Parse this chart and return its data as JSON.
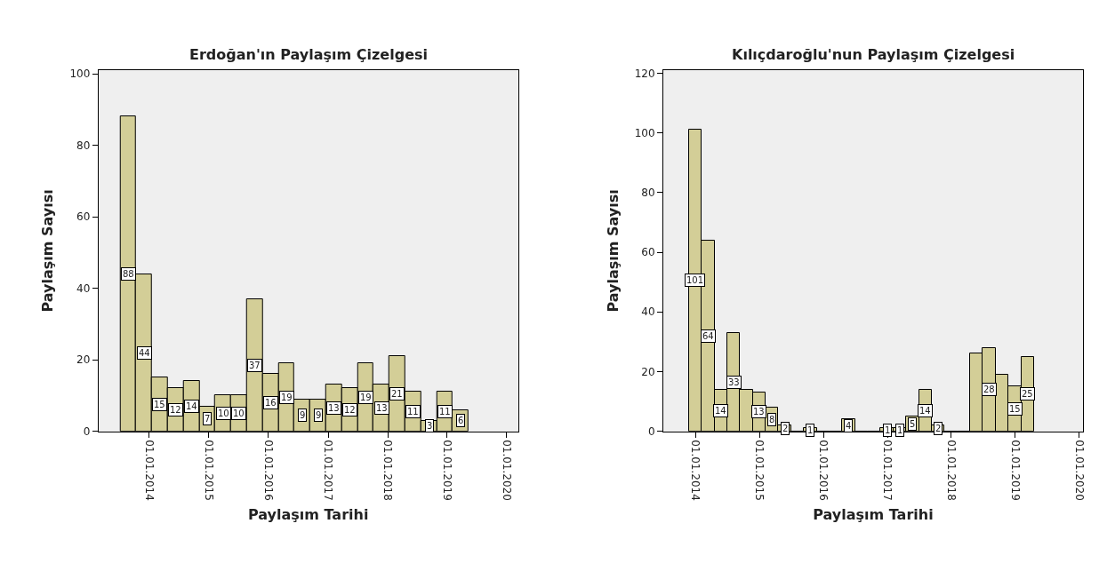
{
  "chart_data": [
    {
      "type": "histogram",
      "title": "Erdoğan'ın Paylaşım Çizelgesi",
      "xlabel": "Paylaşım Tarihi",
      "ylabel": "Paylaşım Sayısı",
      "color": "#d3ce97",
      "bins": [
        "2013-07-08",
        "2013-10-13",
        "2014-01-18",
        "2014-04-25",
        "2014-07-31",
        "2014-11-05",
        "2015-02-10",
        "2015-05-18",
        "2015-08-23",
        "2015-11-28",
        "2016-03-04",
        "2016-06-09",
        "2016-09-14",
        "2016-12-20",
        "2017-03-27",
        "2017-07-02",
        "2017-10-07",
        "2018-01-12",
        "2018-04-19",
        "2018-07-25",
        "2018-10-30",
        "2019-02-04",
        "2019-05-12"
      ],
      "values": [
        88,
        44,
        15,
        12,
        14,
        7,
        10,
        10,
        37,
        16,
        19,
        9,
        9,
        13,
        12,
        19,
        13,
        21,
        11,
        3,
        11,
        6
      ],
      "data_labels": true,
      "xlim": [
        "2013-02-24",
        "2020-03-10"
      ],
      "ylim": [
        0,
        101
      ],
      "yticks": [
        0,
        20,
        40,
        60,
        80,
        100
      ],
      "xticks": [
        {
          "value": "2014-01-01",
          "label": "01.01.2014"
        },
        {
          "value": "2015-01-01",
          "label": "01.01.2015"
        },
        {
          "value": "2016-01-01",
          "label": "01.01.2016"
        },
        {
          "value": "2017-01-01",
          "label": "01.01.2017"
        },
        {
          "value": "2018-01-01",
          "label": "01.01.2018"
        },
        {
          "value": "2019-01-01",
          "label": "01.01.2019"
        },
        {
          "value": "2020-01-01",
          "label": "01.01.2020"
        }
      ]
    },
    {
      "type": "histogram",
      "title": "Kılıçdaroğlu'nun Paylaşım Çizelgesi",
      "xlabel": "Paylaşım Tarihi",
      "ylabel": "Paylaşım Sayısı",
      "color": "#d3ce97",
      "bins": [
        "2013-11-24",
        "2014-02-05",
        "2014-04-19",
        "2014-07-01",
        "2014-09-12",
        "2014-11-24",
        "2015-02-05",
        "2015-04-19",
        "2015-07-01",
        "2015-09-12",
        "2015-11-24",
        "2016-02-05",
        "2016-04-18",
        "2016-06-30",
        "2016-09-11",
        "2016-11-23",
        "2017-02-04",
        "2017-04-18",
        "2017-06-30",
        "2017-09-11",
        "2017-11-23",
        "2018-02-04",
        "2018-04-18",
        "2018-06-30",
        "2018-09-11",
        "2018-11-23",
        "2019-02-04",
        "2019-04-18"
      ],
      "values": [
        101,
        64,
        14,
        33,
        14,
        13,
        8,
        2,
        0,
        1,
        0,
        0,
        4,
        0,
        0,
        1,
        1,
        5,
        14,
        2,
        0,
        0,
        26,
        28,
        19,
        15,
        25
      ],
      "value_labels": [
        "101",
        "64",
        "14",
        "33",
        null,
        "13",
        "8",
        "2",
        null,
        "1",
        null,
        null,
        "4",
        null,
        null,
        "1",
        "1",
        "5",
        "14",
        "2",
        null,
        null,
        null,
        "28",
        null,
        "15",
        "25"
      ],
      "xlim": [
        "2013-07-01",
        "2020-01-22"
      ],
      "ylim": [
        0,
        121
      ],
      "yticks": [
        0,
        20,
        40,
        60,
        80,
        100,
        120
      ],
      "xticks": [
        {
          "value": "2014-01-01",
          "label": "01.01.2014"
        },
        {
          "value": "2015-01-01",
          "label": "01.01.2015"
        },
        {
          "value": "2016-01-01",
          "label": "01.01.2016"
        },
        {
          "value": "2017-01-01",
          "label": "01.01.2017"
        },
        {
          "value": "2018-01-01",
          "label": "01.01.2018"
        },
        {
          "value": "2019-01-01",
          "label": "01.01.2019"
        },
        {
          "value": "2020-01-01",
          "label": "01.01.2020"
        }
      ]
    }
  ]
}
